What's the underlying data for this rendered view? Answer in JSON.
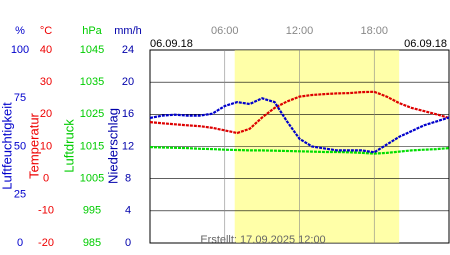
{
  "chart_data": {
    "type": "line",
    "date_left": "06.09.18",
    "date_right": "06.09.18",
    "footer": "Erstellt: 17.09.2025 12:00",
    "xlim": [
      0,
      24
    ],
    "xticks": [
      {
        "value": 6,
        "label": "06:00"
      },
      {
        "value": 12,
        "label": "12:00"
      },
      {
        "value": 18,
        "label": "18:00"
      }
    ],
    "daylight": [
      6.8,
      20
    ],
    "daylight_color": "#ffffa8",
    "grid": true,
    "y_axes": [
      {
        "unit": "%",
        "label": "Luftfeuchtigkeit",
        "color": "#0000cc",
        "ylim": [
          0,
          100
        ],
        "yticks": [
          100,
          75,
          50,
          25,
          0
        ]
      },
      {
        "unit": "°C",
        "label": "Temperatur",
        "color": "#ee0000",
        "ylim": [
          -20,
          40
        ],
        "yticks": [
          40,
          30,
          20,
          10,
          0,
          -10,
          -20
        ]
      },
      {
        "unit": "hPa",
        "label": "Luftdruck",
        "color": "#00cc00",
        "ylim": [
          985,
          1045
        ],
        "yticks": [
          1045,
          1035,
          1025,
          1015,
          1005,
          995,
          985
        ]
      },
      {
        "unit": "mm/h",
        "label": "Niederschlag",
        "color": "#0000aa",
        "ylim": [
          0,
          24
        ],
        "yticks": [
          24,
          20,
          16,
          12,
          8,
          4,
          0
        ]
      }
    ],
    "x": [
      0,
      1,
      2,
      3,
      4,
      5,
      6,
      7,
      8,
      9,
      10,
      11,
      12,
      13,
      14,
      15,
      16,
      17,
      18,
      19,
      20,
      21,
      22,
      23,
      24
    ],
    "series": [
      {
        "name": "Luftdruck",
        "color": "#00dd00",
        "axis": 2,
        "values": [
          1014.8,
          1014.7,
          1014.6,
          1014.5,
          1014.3,
          1014.2,
          1014,
          1013.9,
          1013.8,
          1013.8,
          1013.7,
          1013.6,
          1013.5,
          1013.4,
          1013.3,
          1013.3,
          1013.2,
          1013,
          1012.8,
          1013,
          1013.4,
          1013.8,
          1014,
          1014.2,
          1014.5
        ]
      },
      {
        "name": "Temperatur",
        "color": "#dd0000",
        "axis": 1,
        "values": [
          17.6,
          17.2,
          16.9,
          16.6,
          16.3,
          15.8,
          15,
          14.2,
          15.5,
          19,
          22,
          24,
          25.5,
          26,
          26.3,
          26.5,
          26.6,
          26.9,
          27,
          25.5,
          23.5,
          22,
          21,
          20,
          18.9
        ]
      },
      {
        "name": "Luftfeuchtigkeit",
        "color": "#0000cc",
        "axis": 0,
        "values": [
          64.8,
          66,
          66.5,
          66,
          66,
          67,
          71,
          73,
          72,
          75,
          73,
          63,
          54,
          50,
          49,
          48,
          48,
          48,
          47,
          51,
          55,
          58,
          61,
          63,
          65
        ]
      }
    ]
  }
}
